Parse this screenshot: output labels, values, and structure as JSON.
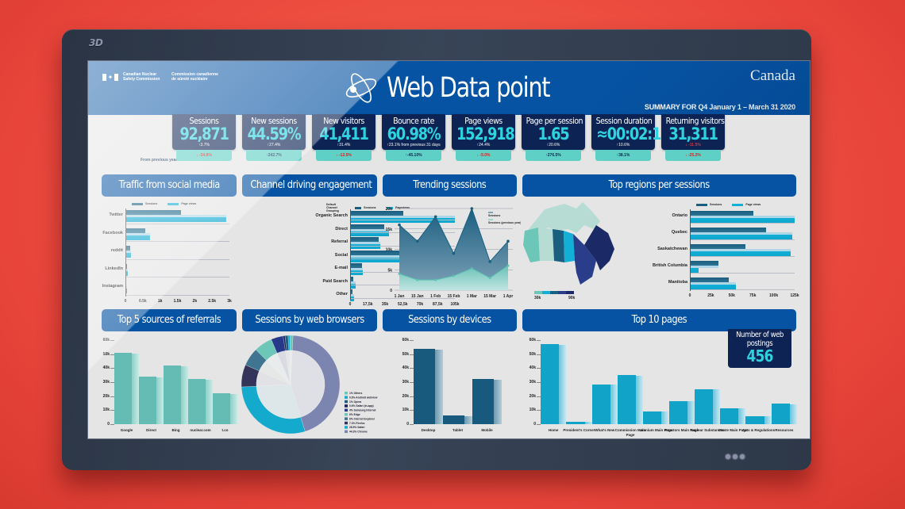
{
  "device": {
    "brand_label": "3D",
    "indicator_dots": 3
  },
  "header": {
    "org_en_line1": "Canadian Nuclear",
    "org_en_line2": "Safety Commission",
    "org_fr_line1": "Commission canadienne",
    "org_fr_line2": "de sûreté nucléaire",
    "title": "Web Data point",
    "wordmark": "Canada",
    "summary": "SUMMARY FOR Q4 January 1 – March 31 2020"
  },
  "kpis": {
    "from_previous_label": "From previous year",
    "items": [
      {
        "label": "Sessions",
        "value": "92,871",
        "delta": "↑3.7%",
        "yoy": "↓ -34.8%",
        "yoy_negative": true
      },
      {
        "label": "New sessions",
        "value": "44.59%",
        "delta": "↑27.4%",
        "yoy": "↑242.7%",
        "yoy_negative": false
      },
      {
        "label": "New visitors",
        "value": "41,411",
        "delta": "↑31.4%",
        "yoy": "↓ -12.5%",
        "yoy_negative": true
      },
      {
        "label": "Bounce rate",
        "value": "60.98%",
        "delta": "↑23.1% from previous 31 days",
        "yoy": "↑-45.10%",
        "yoy_negative": false
      },
      {
        "label": "Page views",
        "value": "152,918",
        "delta": "↑24.4%",
        "yoy": "↓ -5.0%",
        "yoy_negative": true
      },
      {
        "label": "Page per session",
        "value": "1.65",
        "delta": "↑20.6%",
        "yoy": "↑276.5%",
        "yoy_negative": false
      },
      {
        "label": "Session duration",
        "value": "≈00:02:14",
        "delta": "↑10.6%",
        "yoy": "↑38.1%",
        "yoy_negative": false
      },
      {
        "label": "Returning visitors",
        "value": "31,311",
        "delta": "↓ -11.5%",
        "yoy": "↓ -25.2%",
        "yoy_negative": true
      }
    ]
  },
  "panels": {
    "social": "Traffic from social media",
    "channel": "Channel driving engagement",
    "trending": "Trending sessions",
    "regions": "Top regions per sessions",
    "referrals": "Top 5 sources of referrals",
    "browsers": "Sessions by web browsers",
    "devices": "Sessions by devices",
    "pages": "Top 10 pages"
  },
  "web_postings": {
    "label": "Number of web postings",
    "value": "456"
  },
  "colors": {
    "header_blue": "#0653a3",
    "card_navy": "#0d2354",
    "accent_cyan": "#2ed3e0",
    "teal": "#5fd0c5",
    "sessions_bar": "#1b5f80",
    "pageviews_bar": "#12afd6",
    "negative_red": "#e01e1e"
  },
  "chart_data": [
    {
      "type": "bar",
      "orientation": "horizontal",
      "title": "Traffic from social media",
      "categories": [
        "Twitter",
        "Facebook",
        "reddit",
        "LinkedIn",
        "Instagram"
      ],
      "series": [
        {
          "name": "Sessions",
          "values": [
            1600,
            570,
            130,
            40,
            30
          ]
        },
        {
          "name": "Page views",
          "values": [
            2900,
            720,
            160,
            60,
            35
          ]
        }
      ],
      "xticks": [
        "0",
        "0.5k",
        "1k",
        "1.5k",
        "2k",
        "2.5k",
        "3k"
      ],
      "xlim": [
        0,
        3000
      ]
    },
    {
      "type": "bar",
      "orientation": "horizontal",
      "title": "Channel driving engagement",
      "legend_title": "Default Channel Grouping",
      "categories": [
        "Organic Search",
        "Direct",
        "Referral",
        "Social",
        "E-mail",
        "Paid Search",
        "Other"
      ],
      "series": [
        {
          "name": "Sessions",
          "values": [
            53000,
            34000,
            29000,
            65000,
            12000,
            3500,
            2500
          ]
        },
        {
          "name": "Pageviews",
          "values": [
            105000,
            39000,
            30000,
            79000,
            13000,
            5500,
            4000
          ]
        }
      ],
      "xticks": [
        "0",
        "17,5k",
        "35k",
        "52,5k",
        "70k",
        "87,5k",
        "105k"
      ],
      "xlim": [
        0,
        105000
      ]
    },
    {
      "type": "area",
      "title": "Trending sessions",
      "x": [
        "1 Jan",
        "15 Jan",
        "1 Feb",
        "15 Feb",
        "1 Mar",
        "15 Mar",
        "1 Apr"
      ],
      "series": [
        {
          "name": "Sessions",
          "values": [
            16000,
            12000,
            18000,
            9000,
            20000,
            7000,
            12000
          ]
        },
        {
          "name": "Sessions (previous year)",
          "values": [
            4000,
            2500,
            2500,
            3500,
            5300,
            3000,
            6000
          ]
        }
      ],
      "yticks": [
        "0",
        "5k",
        "10k",
        "15k",
        "20k"
      ],
      "ylim": [
        0,
        20000
      ]
    },
    {
      "type": "bar",
      "orientation": "horizontal",
      "title": "Top regions per sessions",
      "categories": [
        "Ontario",
        "Quebec",
        "Saskatchewan",
        "British Columbia",
        "Manitoba"
      ],
      "series": [
        {
          "name": "Sessions",
          "values": [
            76000,
            91000,
            66000,
            34000,
            46000
          ]
        },
        {
          "name": "Page views",
          "values": [
            125000,
            122000,
            120000,
            10000,
            55000
          ]
        }
      ],
      "xticks": [
        "0",
        "25k",
        "50k",
        "75k",
        "100k",
        "125k"
      ],
      "xlim": [
        0,
        125000
      ],
      "map_legend": {
        "min": "30k",
        "max": "90k"
      }
    },
    {
      "type": "bar",
      "title": "Top 5 sources of referrals",
      "categories": [
        "Google",
        "Direct",
        "Bing",
        "nuclear.com",
        "t.co"
      ],
      "values": [
        51000,
        34000,
        42000,
        32000,
        22000
      ],
      "yticks": [
        "0",
        "10k",
        "20k",
        "30k",
        "40k",
        "50k",
        "60k"
      ],
      "ylim": [
        0,
        60000
      ]
    },
    {
      "type": "pie",
      "donut": true,
      "title": "Sessions by web browsers",
      "labels": [
        "Chrome",
        "Safari",
        "Firefox",
        "Internet Explorer",
        "Edge",
        "Samsung Internet",
        "Safari (in-app)",
        "Opera",
        "Android webview",
        "Others"
      ],
      "legend": [
        "1% Others",
        "0.6% Android webview",
        "1% Opera",
        "0.6% Safari (in-app)",
        "4% Samsung Internet",
        "6% Edge",
        "6% Internet Explorer",
        "7.3% Firefox",
        "28.9% Safari",
        "44.3% Chrome"
      ],
      "values": [
        44.3,
        28.9,
        7.3,
        6,
        6,
        4,
        0.6,
        1,
        0.6,
        1
      ]
    },
    {
      "type": "bar",
      "title": "Sessions by devices",
      "categories": [
        "Desktop",
        "Tablet",
        "Mobile"
      ],
      "values": [
        54000,
        6000,
        32000
      ],
      "yticks": [
        "0",
        "10k",
        "20k",
        "30k",
        "40k",
        "50k",
        "60k"
      ],
      "ylim": [
        0,
        60000
      ]
    },
    {
      "type": "bar",
      "title": "Top 10 pages",
      "categories": [
        "Home",
        "President's Corner",
        "What's New",
        "Commission Main Page",
        "Uranium Main Page",
        "Reactors Main Page",
        "Nuclear Substances",
        "Waste Main Page",
        "Acts & Regulations",
        "Resources"
      ],
      "values": [
        57000,
        1500,
        28500,
        35000,
        9000,
        16500,
        25000,
        11500,
        5500,
        14500
      ],
      "yticks": [
        "0",
        "10k",
        "20k",
        "30k",
        "40k",
        "50k",
        "60k"
      ],
      "ylim": [
        0,
        60000
      ]
    }
  ]
}
